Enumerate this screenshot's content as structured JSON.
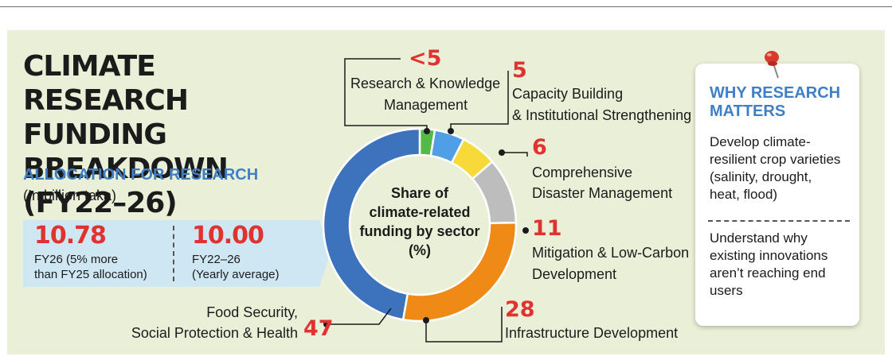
{
  "title": "CLIMATE RESEARCH\nFUNDING BREAKDOWN\n(FY22–26)",
  "allocation": {
    "heading": "ALLOCATION FOR RESEARCH",
    "unit": "(In billion taka)",
    "stats": [
      {
        "value": "10.78",
        "label": "FY26 (5% more\nthan FY25 allocation)"
      },
      {
        "value": "10.00",
        "label": "FY22–26\n(Yearly average)"
      }
    ]
  },
  "chart_data": {
    "type": "pie",
    "title": "Share of climate-related funding by sector (%)",
    "center_label": [
      "Share of",
      "climate-related",
      "funding by sector",
      "(%)"
    ],
    "slices": [
      {
        "label": "Research & Knowledge Management",
        "value": 2.5,
        "value_label": "<5",
        "color": "#55b947",
        "label_lines": [
          "Research & Knowledge",
          "Management"
        ]
      },
      {
        "label": "Capacity Building & Institutional Strengthening",
        "value": 5,
        "value_label": "5",
        "color": "#4f9ee6",
        "label_lines": [
          "Capacity Building",
          "& Institutional Strengthening"
        ]
      },
      {
        "label": "Comprehensive Disaster Management",
        "value": 6,
        "value_label": "6",
        "color": "#f8d93a",
        "label_lines": [
          "Comprehensive",
          "Disaster Management"
        ]
      },
      {
        "label": "Mitigation & Low-Carbon Development",
        "value": 11,
        "value_label": "11",
        "color": "#bdbdbd",
        "label_lines": [
          "Mitigation & Low-Carbon",
          "Development"
        ]
      },
      {
        "label": "Infrastructure Development",
        "value": 28,
        "value_label": "28",
        "color": "#ef8a17",
        "label_lines": [
          "Infrastructure Development"
        ]
      },
      {
        "label": "Food Security, Social Protection & Health",
        "value": 47,
        "value_label": "47",
        "color": "#3d73bd",
        "label_lines": [
          "Food Security,",
          "Social Protection & Health"
        ]
      }
    ]
  },
  "why_research": {
    "title": "WHY RESEARCH\nMATTERS",
    "items": [
      "Develop climate-\nresilient crop varieties\n(salinity, drought,\nheat, flood)",
      "Understand why\nexisting innovations\naren’t reaching end\nusers"
    ]
  }
}
